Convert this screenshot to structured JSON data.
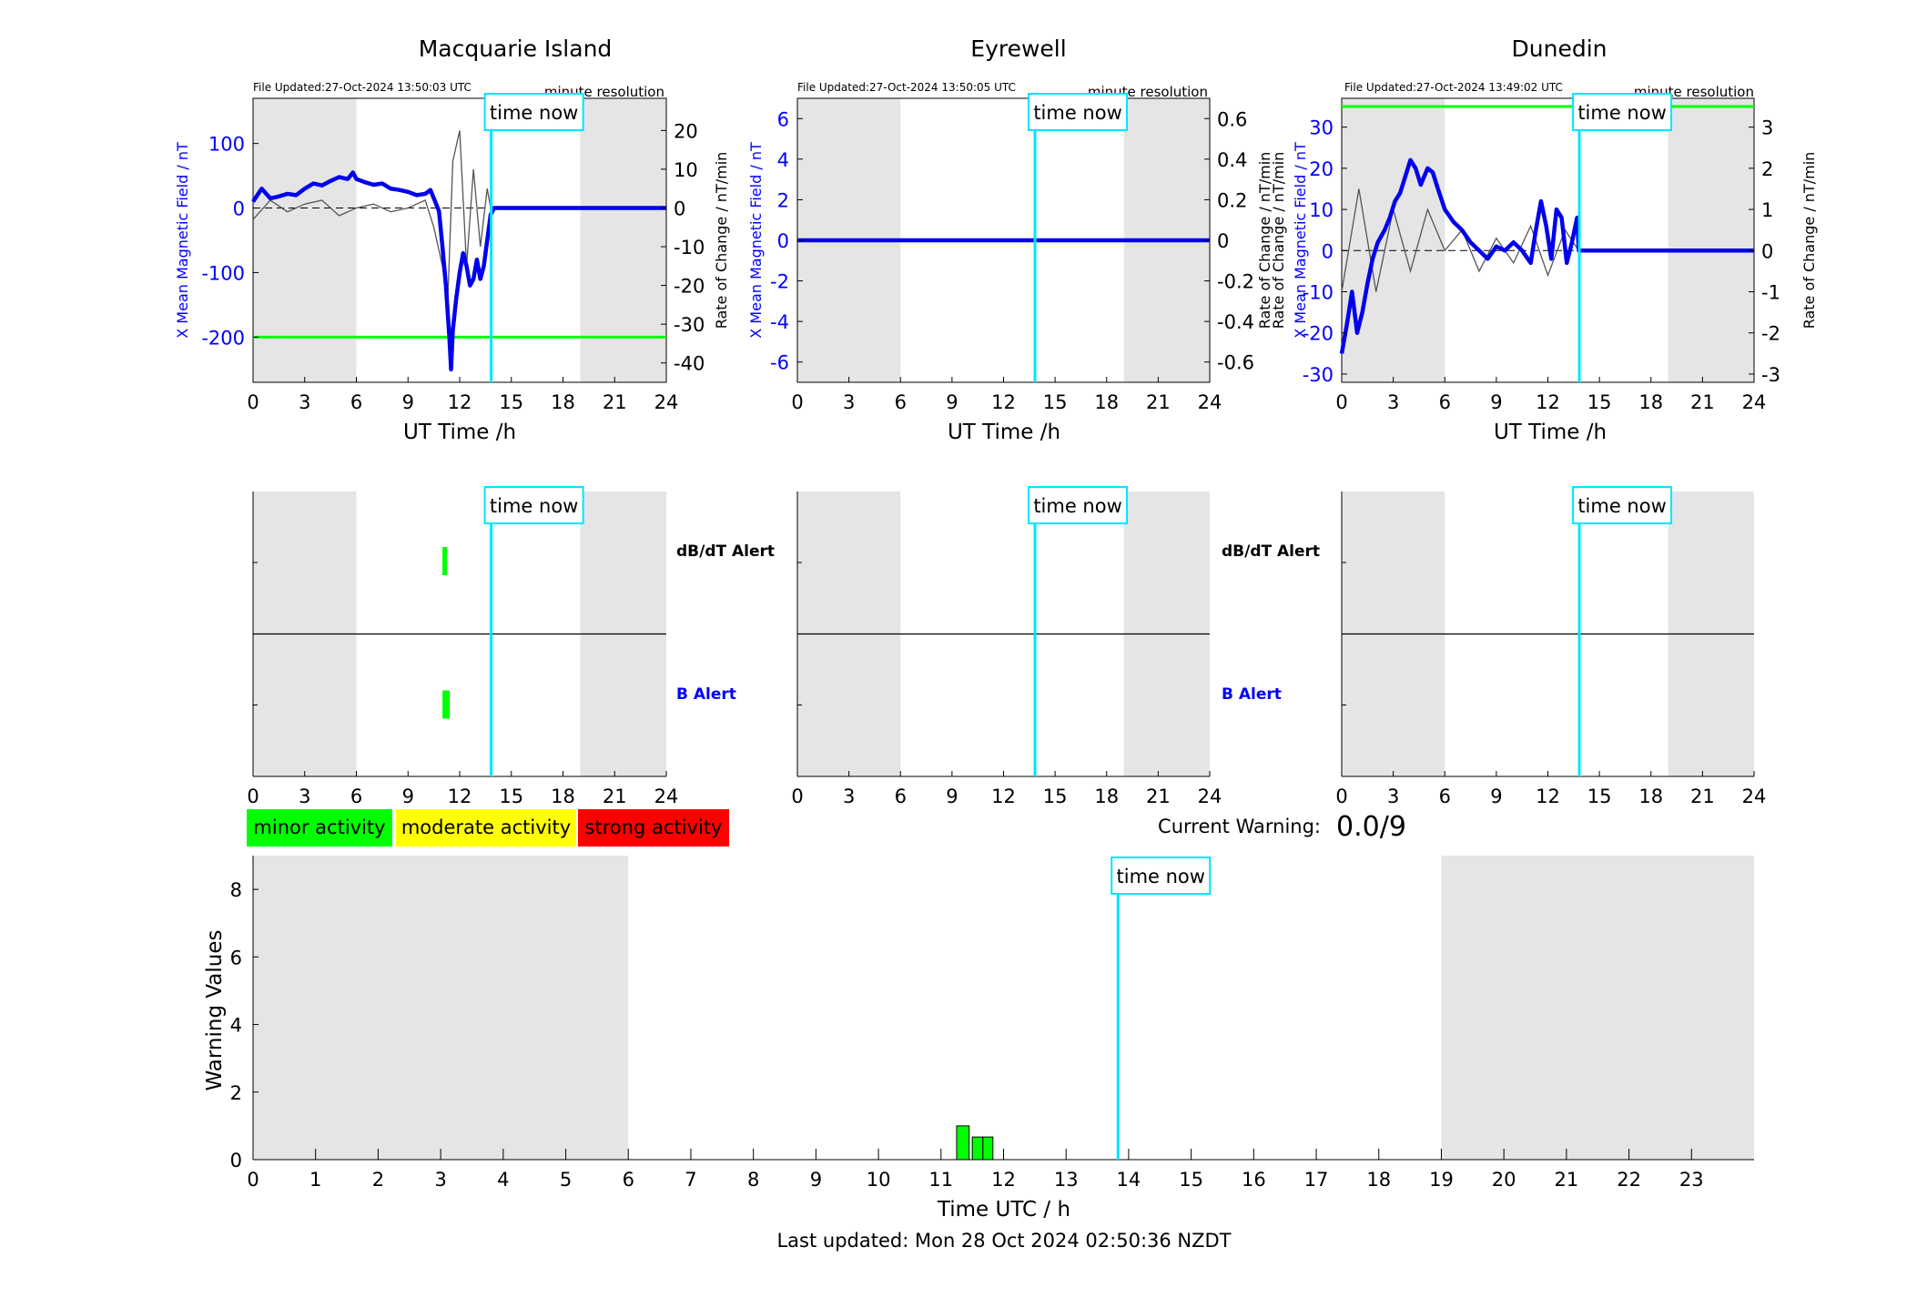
{
  "top_titles": [
    "Macquarie Island",
    "Eyrewell",
    "Dunedin"
  ],
  "file_updated": [
    "File Updated:27-Oct-2024 13:50:03 UTC",
    "File Updated:27-Oct-2024 13:50:05 UTC",
    "File Updated:27-Oct-2024 13:49:02 UTC"
  ],
  "resolution_label": "minute resolution",
  "time_now_label": "time now",
  "ut_xlabel": "UT Time /h",
  "ylabel_left": "X Mean Magnetic Field / nT",
  "ylabel_right": "Rate of Change / nT/min",
  "dbdt_alert_label": "dB/dT Alert",
  "b_alert_label": "B Alert",
  "legend": [
    {
      "label": "minor activity",
      "color": "#00ff00"
    },
    {
      "label": "moderate activity",
      "color": "#ffff00"
    },
    {
      "label": "strong activity",
      "color": "#ff0000"
    }
  ],
  "current_warning_label": "Current Warning:",
  "current_warning_value": "0.0/9",
  "bottom_xlabel": "Time UTC / h",
  "bottom_ylabel": "Warning Values",
  "last_updated": "Last updated: Mon 28 Oct 2024 02:50:36 NZDT",
  "colors": {
    "field_line": "#0000ee",
    "axis_blue": "#0000ff",
    "time_now": "#00e5ff",
    "threshold": "#00ff00",
    "night_shade": "#e5e5e5",
    "rate_line": "#555555",
    "bar_fill": "#00ff00"
  },
  "chart_data": [
    {
      "type": "line",
      "title": "Macquarie Island",
      "xlabel": "UT Time /h",
      "ylabel": "X Mean Magnetic Field / nT",
      "ylabel_right": "Rate of Change / nT/min",
      "xlim": [
        0,
        24
      ],
      "ylim": [
        -270,
        170
      ],
      "ylim_right": [
        -45,
        28.3
      ],
      "xticks": [
        0,
        3,
        6,
        9,
        12,
        15,
        18,
        21,
        24
      ],
      "yticks": [
        -200,
        -100,
        0,
        100
      ],
      "yticks_right": [
        -40,
        -30,
        -20,
        -10,
        0,
        10,
        20
      ],
      "night_shading": [
        [
          0,
          6
        ],
        [
          19,
          24
        ]
      ],
      "time_now": 13.83,
      "threshold": -200,
      "series": [
        {
          "values_field": [
            [
              0,
              10
            ],
            [
              0.5,
              30
            ],
            [
              1,
              15
            ],
            [
              1.5,
              18
            ],
            [
              2,
              22
            ],
            [
              2.5,
              20
            ],
            [
              3,
              30
            ],
            [
              3.5,
              38
            ],
            [
              4,
              35
            ],
            [
              4.5,
              42
            ],
            [
              5,
              48
            ],
            [
              5.5,
              45
            ],
            [
              5.8,
              55
            ],
            [
              6,
              45
            ],
            [
              6.5,
              40
            ],
            [
              7,
              36
            ],
            [
              7.5,
              38
            ],
            [
              8,
              30
            ],
            [
              8.5,
              28
            ],
            [
              9,
              25
            ],
            [
              9.5,
              20
            ],
            [
              10,
              22
            ],
            [
              10.3,
              28
            ],
            [
              10.5,
              15
            ],
            [
              10.8,
              -5
            ],
            [
              11,
              -60
            ],
            [
              11.2,
              -120
            ],
            [
              11.4,
              -200
            ],
            [
              11.5,
              -250
            ],
            [
              11.6,
              -190
            ],
            [
              11.8,
              -140
            ],
            [
              12,
              -100
            ],
            [
              12.2,
              -70
            ],
            [
              12.4,
              -90
            ],
            [
              12.6,
              -120
            ],
            [
              12.8,
              -110
            ],
            [
              13,
              -80
            ],
            [
              13.2,
              -110
            ],
            [
              13.4,
              -90
            ],
            [
              13.6,
              -50
            ],
            [
              13.8,
              -10
            ],
            [
              14,
              0
            ],
            [
              24,
              0
            ]
          ],
          "values_rate": [
            [
              0,
              -3
            ],
            [
              1,
              2
            ],
            [
              2,
              -1
            ],
            [
              3,
              1
            ],
            [
              4,
              2
            ],
            [
              5,
              -2
            ],
            [
              6,
              0
            ],
            [
              7,
              1
            ],
            [
              8,
              -1
            ],
            [
              9,
              0
            ],
            [
              10,
              2
            ],
            [
              10.5,
              -5
            ],
            [
              11,
              -15
            ],
            [
              11.3,
              -25
            ],
            [
              11.6,
              12
            ],
            [
              12,
              20
            ],
            [
              12.4,
              -15
            ],
            [
              12.8,
              10
            ],
            [
              13.2,
              -10
            ],
            [
              13.6,
              5
            ],
            [
              13.8,
              0
            ],
            [
              24,
              0
            ]
          ]
        }
      ]
    },
    {
      "type": "line",
      "title": "Eyrewell",
      "xlabel": "UT Time /h",
      "ylabel": "X Mean Magnetic Field / nT",
      "ylabel_right": "Rate of Change / nT/min",
      "xlim": [
        0,
        24
      ],
      "ylim": [
        -7,
        7
      ],
      "ylim_right": [
        -0.7,
        0.7
      ],
      "xticks": [
        0,
        3,
        6,
        9,
        12,
        15,
        18,
        21,
        24
      ],
      "yticks": [
        -6,
        -4,
        -2,
        0,
        2,
        4,
        6
      ],
      "yticks_right": [
        -0.6,
        -0.4,
        -0.2,
        0,
        0.2,
        0.4,
        0.6
      ],
      "night_shading": [
        [
          0,
          6
        ],
        [
          19,
          24
        ]
      ],
      "time_now": 13.83,
      "series": [
        {
          "values_field": [
            [
              0,
              0
            ],
            [
              24,
              0
            ]
          ],
          "values_rate": [
            [
              0,
              0
            ],
            [
              24,
              0
            ]
          ]
        }
      ]
    },
    {
      "type": "line",
      "title": "Dunedin",
      "xlabel": "UT Time /h",
      "ylabel": "Rate of Change / nT/min",
      "ylabel_secondary": "X Mean Magnetic Field / nT",
      "ylabel_right": "Rate of Change / nT/min",
      "xlim": [
        0,
        24
      ],
      "ylim": [
        -32,
        37
      ],
      "ylim_right": [
        -3.2,
        3.7
      ],
      "xticks": [
        0,
        3,
        6,
        9,
        12,
        15,
        18,
        21,
        24
      ],
      "yticks": [
        -30,
        -20,
        -10,
        0,
        10,
        20,
        30
      ],
      "yticks_right": [
        -3,
        -2,
        -1,
        0,
        1,
        2,
        3
      ],
      "night_shading": [
        [
          0,
          6
        ],
        [
          19,
          24
        ]
      ],
      "time_now": 13.83,
      "threshold": 35,
      "series": [
        {
          "values_field": [
            [
              0,
              -25
            ],
            [
              0.3,
              -18
            ],
            [
              0.6,
              -10
            ],
            [
              0.9,
              -20
            ],
            [
              1.2,
              -15
            ],
            [
              1.5,
              -8
            ],
            [
              1.8,
              -2
            ],
            [
              2.1,
              2
            ],
            [
              2.5,
              5
            ],
            [
              2.8,
              8
            ],
            [
              3.1,
              12
            ],
            [
              3.4,
              14
            ],
            [
              3.7,
              18
            ],
            [
              4,
              22
            ],
            [
              4.3,
              20
            ],
            [
              4.6,
              16
            ],
            [
              5,
              20
            ],
            [
              5.3,
              19
            ],
            [
              5.6,
              15
            ],
            [
              6,
              10
            ],
            [
              6.5,
              7
            ],
            [
              7,
              5
            ],
            [
              7.5,
              2
            ],
            [
              8,
              0
            ],
            [
              8.5,
              -2
            ],
            [
              9,
              1
            ],
            [
              9.5,
              0
            ],
            [
              10,
              2
            ],
            [
              10.5,
              0
            ],
            [
              11,
              -3
            ],
            [
              11.3,
              5
            ],
            [
              11.6,
              12
            ],
            [
              11.9,
              6
            ],
            [
              12.2,
              -2
            ],
            [
              12.5,
              10
            ],
            [
              12.8,
              8
            ],
            [
              13.1,
              -3
            ],
            [
              13.4,
              2
            ],
            [
              13.7,
              8
            ],
            [
              13.8,
              0
            ],
            [
              24,
              0
            ]
          ],
          "values_rate": [
            [
              0,
              -1
            ],
            [
              1,
              1.5
            ],
            [
              2,
              -1
            ],
            [
              3,
              1
            ],
            [
              4,
              -0.5
            ],
            [
              5,
              1
            ],
            [
              6,
              0
            ],
            [
              7,
              0.5
            ],
            [
              8,
              -0.5
            ],
            [
              9,
              0.3
            ],
            [
              10,
              -0.3
            ],
            [
              11,
              0.6
            ],
            [
              12,
              -0.6
            ],
            [
              13,
              0.5
            ],
            [
              13.8,
              0
            ],
            [
              24,
              0
            ]
          ]
        }
      ]
    },
    {
      "type": "bar",
      "title": "",
      "xlabel": "Time UTC / h",
      "ylabel": "Warning Values",
      "xlim": [
        0,
        24
      ],
      "ylim": [
        0,
        9
      ],
      "xticks": [
        0,
        1,
        2,
        3,
        4,
        5,
        6,
        7,
        8,
        9,
        10,
        11,
        12,
        13,
        14,
        15,
        16,
        17,
        18,
        19,
        20,
        21,
        22,
        23
      ],
      "yticks": [
        0,
        2,
        4,
        6,
        8
      ],
      "night_shading": [
        [
          0,
          6
        ],
        [
          19,
          24
        ]
      ],
      "time_now": 13.83,
      "bars": [
        [
          11.25,
          1.0
        ],
        [
          11.5,
          0.67
        ],
        [
          11.67,
          0.67
        ]
      ]
    }
  ],
  "alerts": [
    {
      "dbdt": [
        [
          11.0,
          11.15
        ]
      ],
      "b": [
        [
          11.0,
          11.25
        ]
      ]
    },
    {
      "dbdt": [],
      "b": []
    },
    {
      "dbdt": [],
      "b": []
    }
  ]
}
